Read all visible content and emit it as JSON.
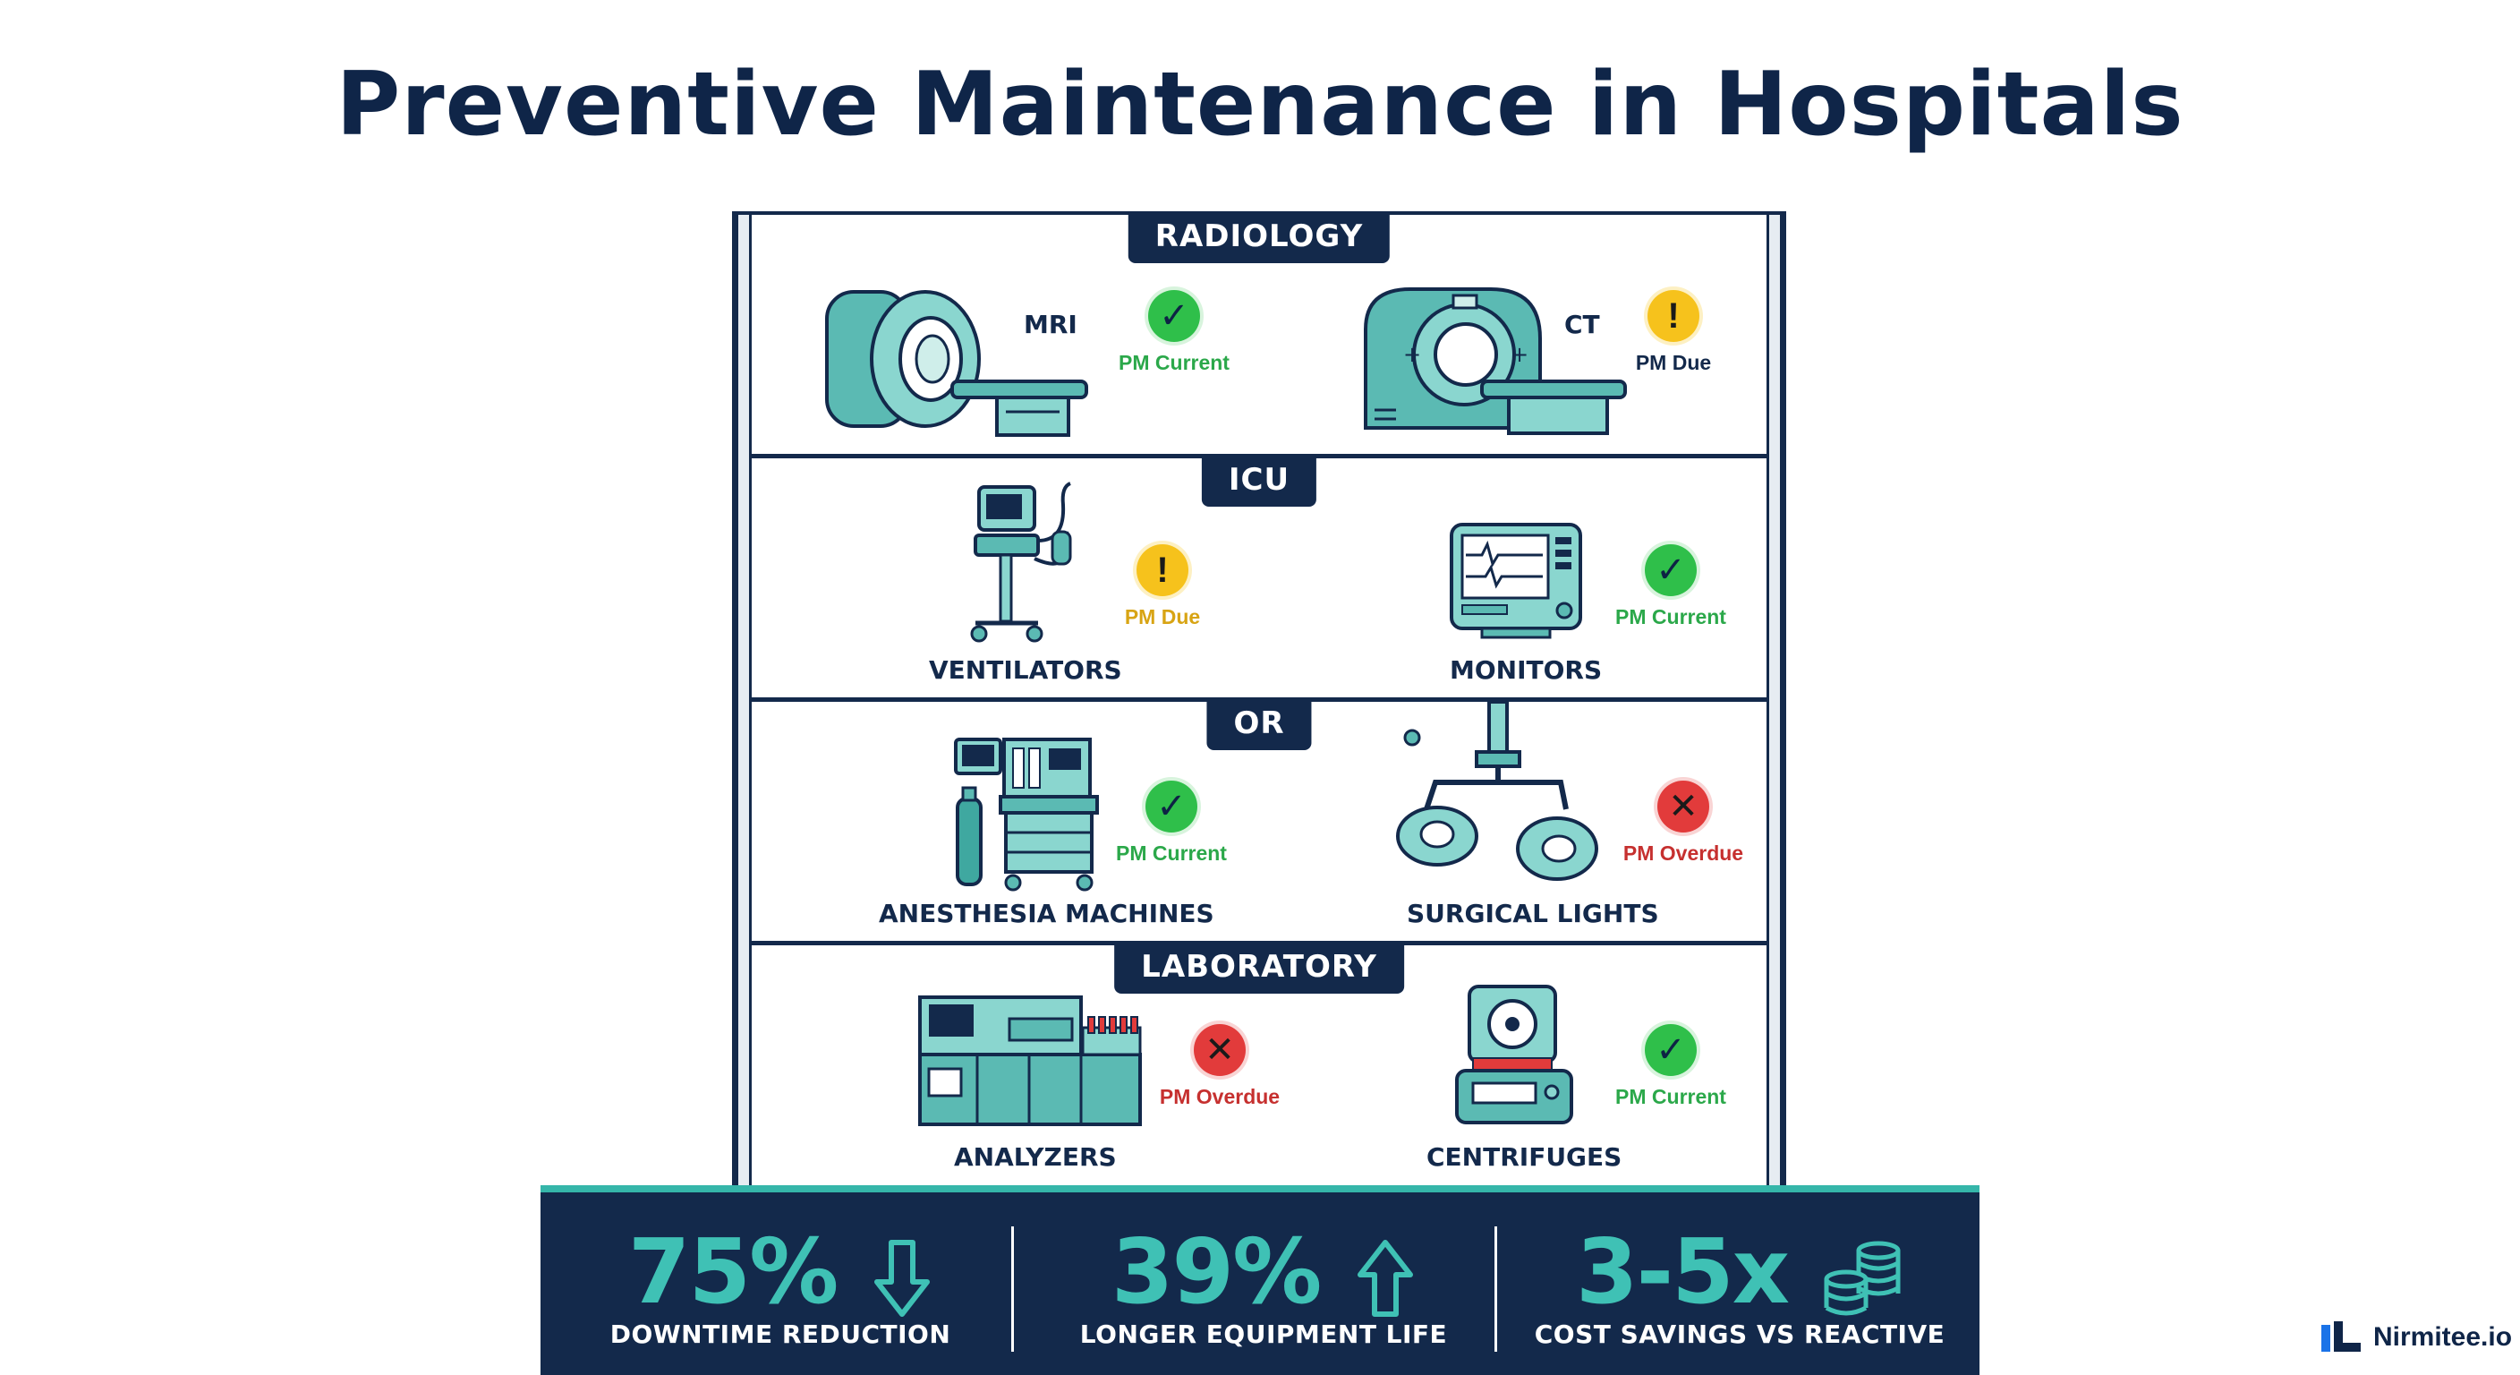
{
  "title": "Preventive Maintenance in Hospitals",
  "departments": [
    {
      "name": "RADIOLOGY",
      "equipment": [
        {
          "name": "MRI",
          "status": "current",
          "status_text": "PM Current",
          "icon": "mri-scanner-icon"
        },
        {
          "name": "CT",
          "status": "due",
          "status_text": "PM Due",
          "icon": "ct-scanner-icon"
        }
      ]
    },
    {
      "name": "ICU",
      "equipment": [
        {
          "name": "VENTILATORS",
          "status": "due",
          "status_text": "PM Due",
          "icon": "ventilator-icon"
        },
        {
          "name": "MONITORS",
          "status": "current",
          "status_text": "PM Current",
          "icon": "patient-monitor-icon"
        }
      ]
    },
    {
      "name": "OR",
      "equipment": [
        {
          "name": "ANESTHESIA MACHINES",
          "status": "current",
          "status_text": "PM Current",
          "icon": "anesthesia-machine-icon"
        },
        {
          "name": "SURGICAL LIGHTS",
          "status": "overdue",
          "status_text": "PM Overdue",
          "icon": "surgical-light-icon"
        }
      ]
    },
    {
      "name": "LABORATORY",
      "equipment": [
        {
          "name": "ANALYZERS",
          "status": "overdue",
          "status_text": "PM Overdue",
          "icon": "lab-analyzer-icon"
        },
        {
          "name": "CENTRIFUGES",
          "status": "current",
          "status_text": "PM Current",
          "icon": "centrifuge-icon"
        }
      ]
    }
  ],
  "stats": [
    {
      "value": "75%",
      "label": "DOWNTIME REDUCTION",
      "icon": "arrow-down-icon"
    },
    {
      "value": "39%",
      "label": "LONGER EQUIPMENT LIFE",
      "icon": "arrow-up-icon"
    },
    {
      "value": "3-5x",
      "label": "COST SAVINGS VS REACTIVE",
      "icon": "coin-stack-icon"
    }
  ],
  "brand": {
    "name": "Nirmitee.io",
    "icon": "nirmitee-logo-icon"
  },
  "colors": {
    "navy": "#13294b",
    "teal": "#3fc1b5",
    "current": "#2fbf4a",
    "due": "#f6c21c",
    "overdue": "#e23b3b"
  }
}
